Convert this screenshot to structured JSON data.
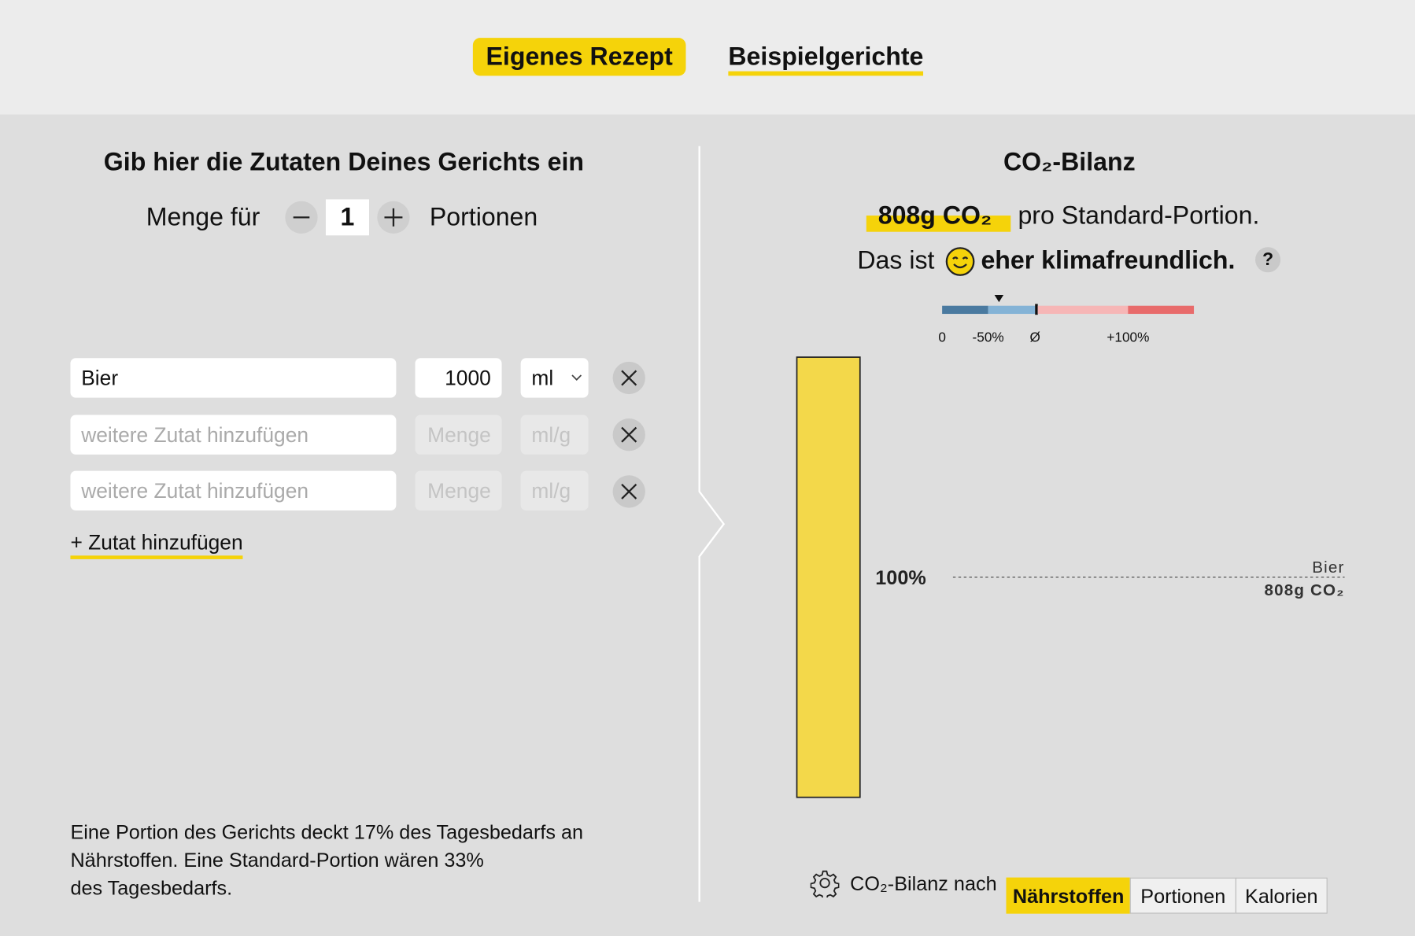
{
  "tabs": [
    "Eigenes Rezept",
    "Beispielgerichte"
  ],
  "left": {
    "title": "Gib hier die Zutaten Deines Gerichts ein",
    "portions_prefix": "Menge für",
    "portions": 1,
    "portions_suffix": "Portionen",
    "ingredients": [
      {
        "name": "Bier",
        "amount": 1000,
        "unit": "ml"
      }
    ],
    "placeholders": {
      "name": "weitere Zutat hinzufügen",
      "amount": "Menge",
      "unit": "ml/g"
    },
    "add_link": "+ Zutat hinzufügen",
    "note_lines": [
      "Eine Portion des Gerichts deckt 17% des Tagesbedarfs an",
      "Nährstoffen. Eine Standard-Portion wären 33%",
      "des Tagesbedarfs."
    ]
  },
  "right": {
    "title": "CO₂-Bilanz",
    "amount": "808g CO₂",
    "amount_suffix": "pro Standard-Portion.",
    "rating_prefix": "Das ist",
    "rating": "eher klimafreundlich.",
    "help": "?",
    "scale_labels": [
      "0",
      "-50%",
      "Ø",
      "+100%"
    ],
    "segments": [
      {
        "name": "Bier",
        "share": 100,
        "share_label": "100%",
        "co2_label": "808g CO₂"
      }
    ],
    "view_label": "CO₂-Bilanz nach",
    "view_options": [
      "Nährstoffen",
      "Portionen",
      "Kalorien"
    ]
  }
}
